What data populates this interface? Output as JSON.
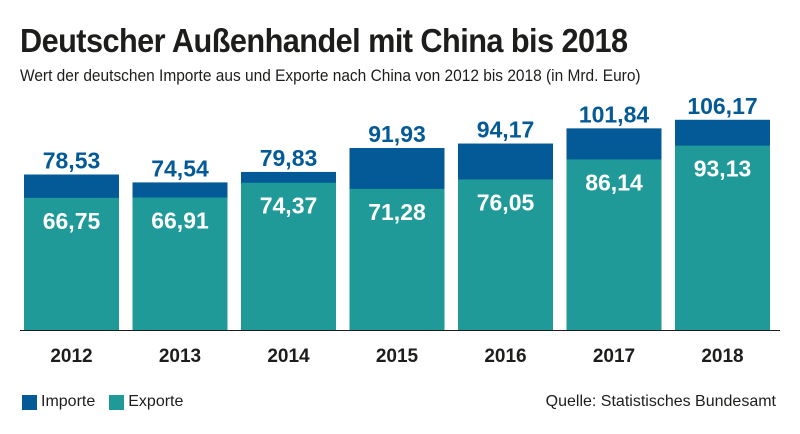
{
  "title": "Deutscher Außenhandel mit China bis 2018",
  "subtitle": "Wert der deutschen Importe aus und Exporte nach China von 2012 bis 2018 (in Mrd. Euro)",
  "source": "Quelle: Statistisches Bundesamt",
  "colors": {
    "importe": "#045a96",
    "exporte": "#1f9a99"
  },
  "chart_data": {
    "type": "bar",
    "stacked": false,
    "categories": [
      "2012",
      "2013",
      "2014",
      "2015",
      "2016",
      "2017",
      "2018"
    ],
    "series": [
      {
        "name": "Importe",
        "values": [
          78.53,
          74.54,
          79.83,
          91.93,
          94.17,
          101.84,
          106.17
        ],
        "labels": [
          "78,53",
          "74,54",
          "79,83",
          "91,93",
          "94,17",
          "101,84",
          "106,17"
        ]
      },
      {
        "name": "Exporte",
        "values": [
          66.75,
          66.91,
          74.37,
          71.28,
          76.05,
          86.14,
          93.13
        ],
        "labels": [
          "66,75",
          "66,91",
          "74,37",
          "71,28",
          "76,05",
          "86,14",
          "93,13"
        ]
      }
    ],
    "ylim": [
      0,
      110
    ],
    "grid": false,
    "legend": "bottom-left"
  }
}
